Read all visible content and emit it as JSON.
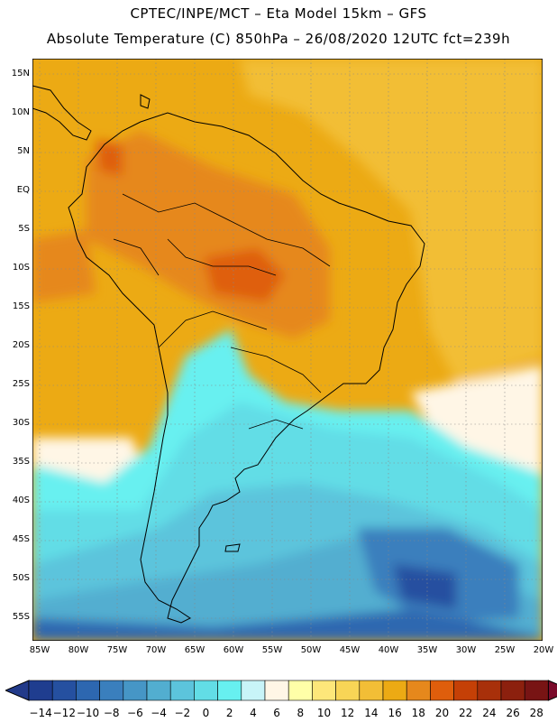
{
  "header": {
    "line1": "CPTEC/INPE/MCT –  Eta Model 15km – GFS",
    "line2": "Absolute Temperature (C) 850hPa – 26/08/2020 12UTC fct=239h"
  },
  "map": {
    "lat_labels": [
      "15N",
      "10N",
      "5N",
      "EQ",
      "5S",
      "10S",
      "15S",
      "20S",
      "25S",
      "30S",
      "35S",
      "40S",
      "45S",
      "50S",
      "55S"
    ],
    "lon_labels": [
      "85W",
      "80W",
      "75W",
      "70W",
      "65W",
      "60W",
      "55W",
      "50W",
      "45W",
      "40W",
      "35W",
      "30W",
      "25W",
      "20W"
    ]
  },
  "colorbar": {
    "labels": [
      "−14",
      "−12",
      "−10",
      "−8",
      "−6",
      "−4",
      "−2",
      "0",
      "2",
      "4",
      "6",
      "8",
      "10",
      "12",
      "14",
      "16",
      "18",
      "20",
      "22",
      "24",
      "26",
      "28"
    ],
    "colors": [
      "#1f3d8f",
      "#2550a0",
      "#2d67b0",
      "#3a7fbd",
      "#4696c6",
      "#52aed0",
      "#5cc4dc",
      "#62dde6",
      "#67f0f0",
      "#c8f4f8",
      "#fff6e6",
      "#ffffa8",
      "#fde77a",
      "#f8d556",
      "#f2be36",
      "#ecaa14",
      "#e6881c",
      "#df5e0c",
      "#c54006",
      "#a8300a",
      "#8c200e",
      "#781414"
    ]
  }
}
